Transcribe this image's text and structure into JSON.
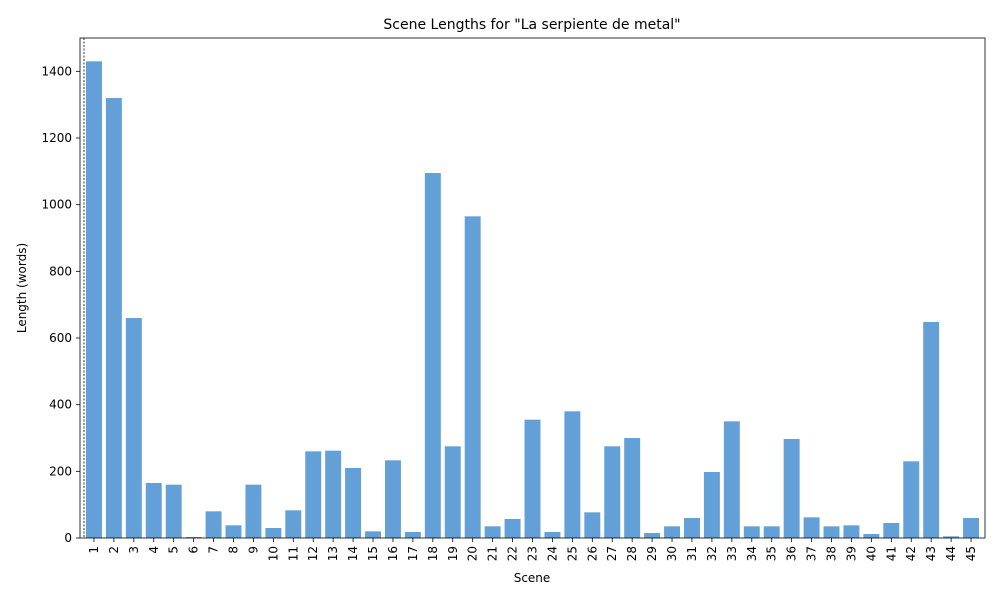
{
  "chart_data": {
    "type": "bar",
    "title": "Scene Lengths for \"La serpiente de metal\"",
    "xlabel": "Scene",
    "ylabel": "Length (words)",
    "ylim": [
      0,
      1500
    ],
    "yticks": [
      0,
      200,
      400,
      600,
      800,
      1000,
      1200,
      1400
    ],
    "grid": false,
    "bar_color": "#5b9bd5",
    "categories": [
      "1",
      "2",
      "3",
      "4",
      "5",
      "6",
      "7",
      "8",
      "9",
      "10",
      "11",
      "12",
      "13",
      "14",
      "15",
      "16",
      "17",
      "18",
      "19",
      "20",
      "21",
      "22",
      "23",
      "24",
      "25",
      "26",
      "27",
      "28",
      "29",
      "30",
      "31",
      "32",
      "33",
      "34",
      "35",
      "36",
      "37",
      "38",
      "39",
      "40",
      "41",
      "42",
      "43",
      "44",
      "45"
    ],
    "values": [
      1430,
      1320,
      660,
      165,
      160,
      3,
      80,
      38,
      160,
      30,
      83,
      260,
      262,
      210,
      20,
      233,
      18,
      1095,
      275,
      965,
      35,
      57,
      355,
      18,
      380,
      77,
      275,
      300,
      15,
      35,
      60,
      198,
      350,
      35,
      35,
      297,
      62,
      35,
      38,
      12,
      45,
      230,
      648,
      5,
      60
    ],
    "marker_line": {
      "category": "1",
      "style": "dashed"
    }
  }
}
